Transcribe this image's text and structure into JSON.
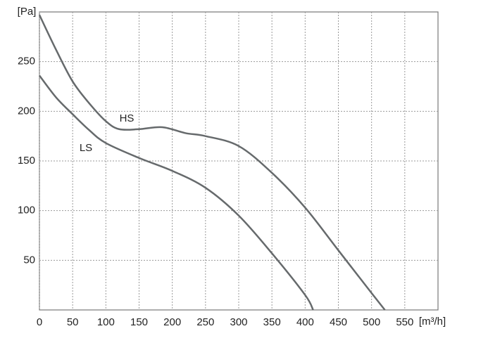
{
  "chart_data": {
    "type": "line",
    "x_label": "[m³/h]",
    "y_label": "[Pa]",
    "xlim": [
      0,
      600
    ],
    "ylim": [
      0,
      300
    ],
    "xticks": [
      0,
      50,
      100,
      150,
      200,
      250,
      300,
      350,
      400,
      450,
      500,
      550
    ],
    "yticks": [
      50,
      100,
      150,
      200,
      250
    ],
    "grid": true,
    "series": [
      {
        "name": "HS",
        "color": "#666a6c",
        "x": [
          0,
          25,
          50,
          75,
          100,
          120,
          150,
          185,
          220,
          250,
          300,
          350,
          400,
          450,
          500,
          520
        ],
        "values": [
          297,
          262,
          230,
          208,
          190,
          182,
          182,
          184,
          178,
          175,
          165,
          138,
          103,
          60,
          17,
          0
        ]
      },
      {
        "name": "LS",
        "color": "#666a6c",
        "x": [
          0,
          25,
          50,
          75,
          100,
          150,
          200,
          250,
          300,
          350,
          400,
          412
        ],
        "values": [
          236,
          214,
          197,
          181,
          168,
          153,
          140,
          123,
          95,
          57,
          15,
          0
        ]
      }
    ]
  }
}
